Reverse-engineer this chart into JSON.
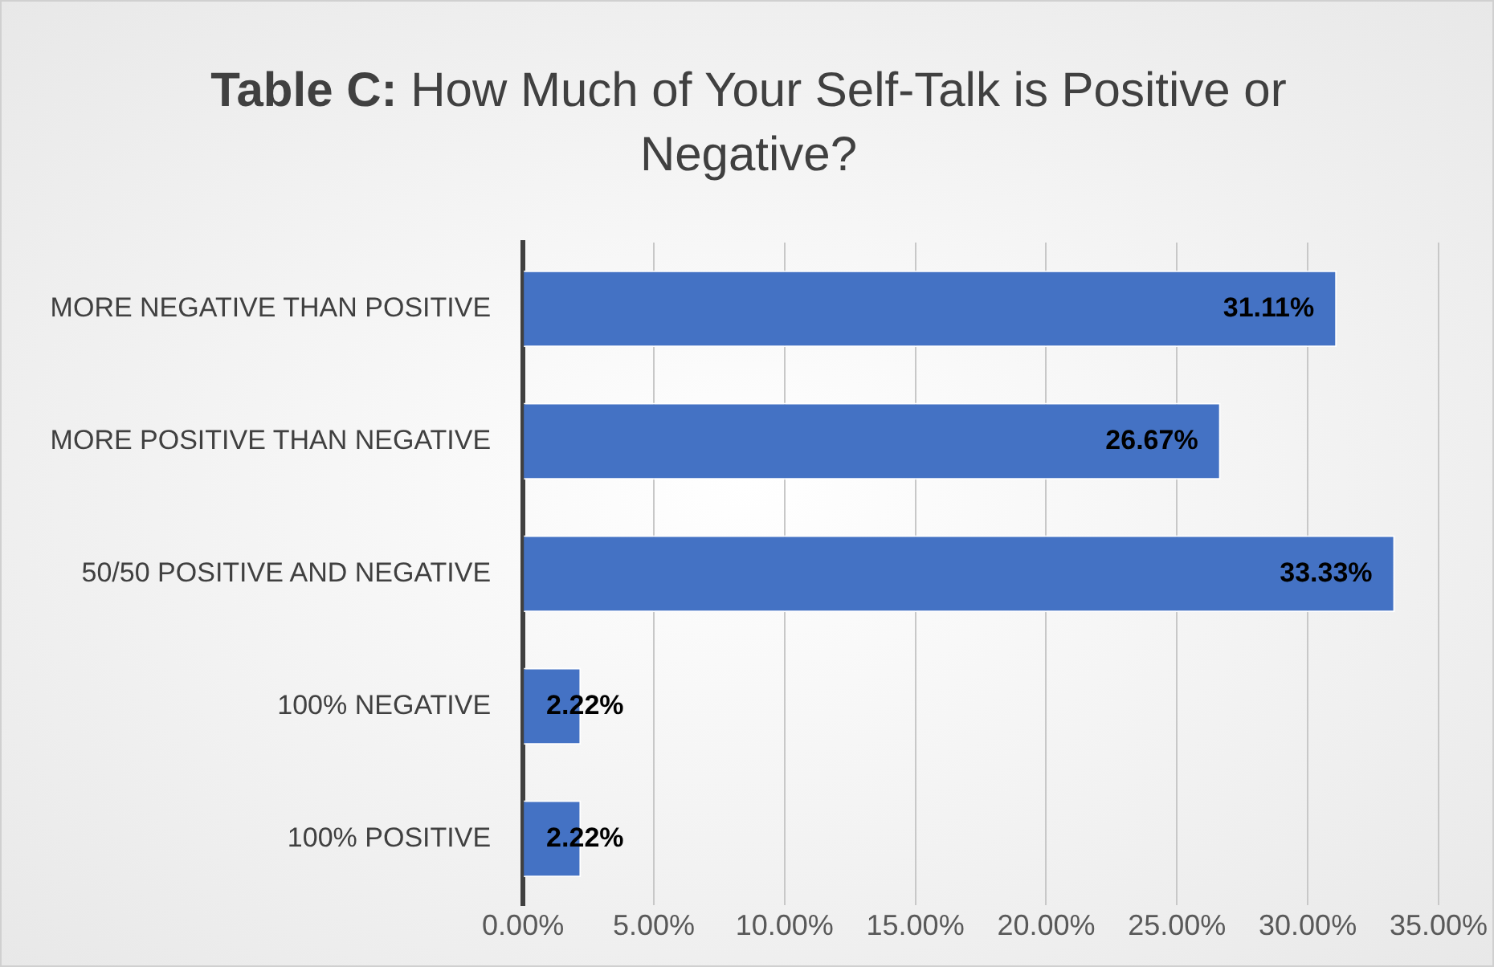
{
  "chart_data": {
    "type": "bar",
    "orientation": "horizontal",
    "title": "Table C: How Much of Your Self-Talk is Positive or Negative?",
    "categories": [
      "MORE NEGATIVE THAN POSITIVE",
      "MORE POSITIVE THAN NEGATIVE",
      "50/50 POSITIVE AND NEGATIVE",
      "100% NEGATIVE",
      "100% POSITIVE"
    ],
    "values": [
      31.11,
      26.67,
      33.33,
      2.22,
      2.22
    ],
    "value_labels": [
      "31.11%",
      "26.67%",
      "33.33%",
      "2.22%",
      "2.22%"
    ],
    "color": "#4472c4",
    "xlim": [
      0,
      35
    ],
    "xticks": [
      {
        "value": 0,
        "label": "0.00%"
      },
      {
        "value": 5,
        "label": "5.00%"
      },
      {
        "value": 10,
        "label": "10.00%"
      },
      {
        "value": 15,
        "label": "15.00%"
      },
      {
        "value": 20,
        "label": "20.00%"
      },
      {
        "value": 25,
        "label": "25.00%"
      },
      {
        "value": 30,
        "label": "30.00%"
      },
      {
        "value": 35,
        "label": "35.00%"
      }
    ],
    "grid": "x",
    "legend": false
  }
}
